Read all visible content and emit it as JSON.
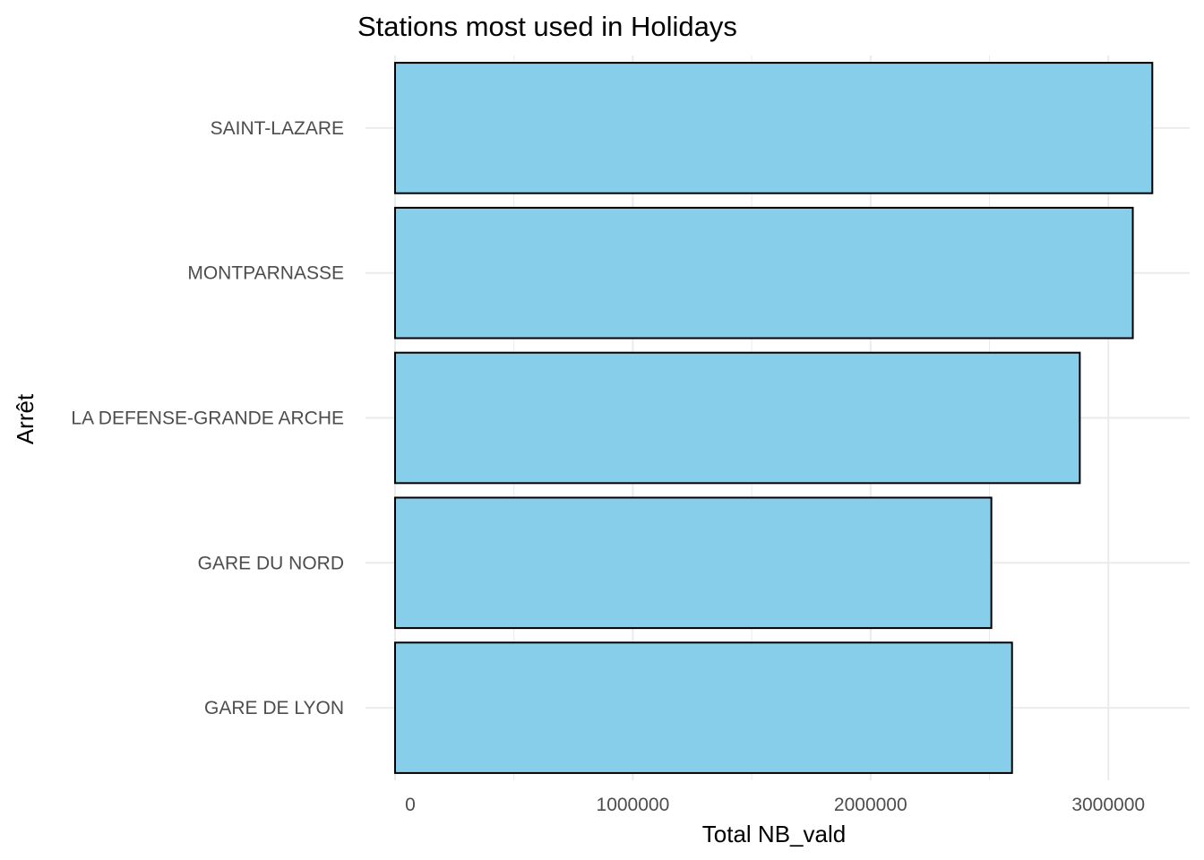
{
  "chart_data": {
    "type": "bar",
    "orientation": "horizontal",
    "title": "Stations most used in Holidays",
    "xlabel": "Total NB_vald",
    "ylabel": "Arrêt",
    "categories": [
      "SAINT-LAZARE",
      "MONTPARNASSE",
      "LA DEFENSE-GRANDE ARCHE",
      "GARE DU NORD",
      "GARE DE LYON"
    ],
    "values": [
      3185000,
      3103000,
      2880000,
      2508000,
      2595000
    ],
    "xlim": [
      0,
      3350000
    ],
    "x_ticks": [
      0,
      1000000,
      2000000,
      3000000
    ],
    "x_tick_labels": [
      "0",
      "1000000",
      "2000000",
      "3000000"
    ],
    "grid": true,
    "bar_fill": "#87CEEB",
    "bar_outline": "#000000",
    "grid_color": "#ebebeb"
  }
}
